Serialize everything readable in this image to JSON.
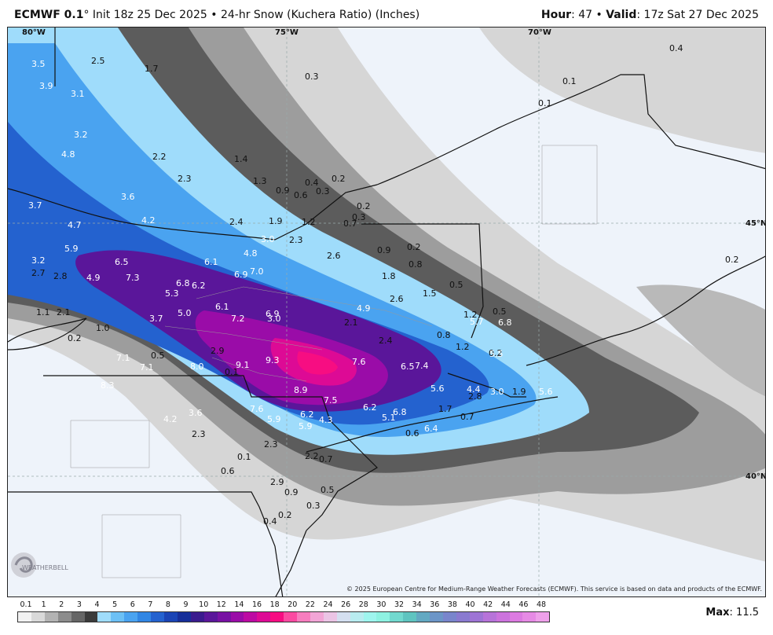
{
  "header": {
    "model": "ECMWF 0.1",
    "degree": "°",
    "init": " Init 18z 25 Dec 2025",
    "sep": " • ",
    "product": "24-hr Snow (Kuchera Ratio) (Inches)",
    "hour_label": "Hour",
    "hour_value": ": 47",
    "valid_label": "Valid",
    "valid_value": ": 17z Sat 27 Dec 2025"
  },
  "map": {
    "lon_labels": [
      "80°W",
      "75°W",
      "70°W"
    ],
    "lat_labels": [
      "45°N",
      "40°N"
    ],
    "value_labels": [
      "3.5",
      "2.5",
      "1.7",
      "0.3",
      "0.4",
      "3.9",
      "3.1",
      "0.1",
      "0.1",
      "3.2",
      "4.8",
      "2.2",
      "1.4",
      "2.3",
      "1.3",
      "0.4",
      "0.2",
      "0.9",
      "0.6",
      "0.3",
      "3.6",
      "0.2",
      "3.7",
      "4.2",
      "0.3",
      "4.7",
      "2.4",
      "1.9",
      "1.2",
      "0.7",
      "3.0",
      "2.3",
      "5.9",
      "4.8",
      "0.9",
      "0.2",
      "3.2",
      "6.5",
      "6.1",
      "2.6",
      "0.8",
      "0.2",
      "2.7",
      "2.8",
      "4.9",
      "7.3",
      "6.8",
      "6.2",
      "6.9",
      "7.0",
      "1.8",
      "0.5",
      "5.3",
      "1.5",
      "1.1",
      "2.1",
      "1.0",
      "3.7",
      "5.0",
      "6.1",
      "6.9",
      "4.9",
      "2.6",
      "1.2",
      "0.5",
      "0.2",
      "7.1",
      "7.1",
      "7.2",
      "3.0",
      "2.1",
      "0.8",
      "5.7",
      "6.8",
      "2.9",
      "2.4",
      "1.2",
      "0.2",
      "0.5",
      "5.5",
      "8.0",
      "9.1",
      "9.3",
      "7.6",
      "6.5",
      "7.4",
      "0.1",
      "8.3",
      "8.9",
      "7.5",
      "5.6",
      "4.4",
      "3.0",
      "1.9",
      "5.6",
      "2.8",
      "7.6",
      "6.2",
      "6.8",
      "5.1",
      "1.7",
      "3.6",
      "5.9",
      "6.2",
      "4.3",
      "0.7",
      "4.2",
      "5.9",
      "6.4",
      "0.6",
      "2.3",
      "2.3",
      "2.2",
      "0.7",
      "0.1",
      "0.6",
      "2.9",
      "0.5",
      "0.9",
      "0.3",
      "0.4",
      "0.2"
    ]
  },
  "colorbar": {
    "labels": [
      "0.1",
      "1",
      "2",
      "3",
      "4",
      "5",
      "6",
      "7",
      "8",
      "9",
      "10",
      "12",
      "14",
      "16",
      "18",
      "20",
      "22",
      "24",
      "26",
      "28",
      "30",
      "32",
      "34",
      "36",
      "38",
      "40",
      "42",
      "44",
      "46",
      "48"
    ],
    "colors": [
      "#f2f2f2",
      "#d9d9d9",
      "#b3b3b3",
      "#8c8c8c",
      "#666666",
      "#3b3b3b",
      "#9fdcfb",
      "#6cc0f5",
      "#4aa3f0",
      "#3186e4",
      "#2462cf",
      "#1a44b5",
      "#162e99",
      "#3a1b8e",
      "#5a169a",
      "#7811a3",
      "#9a0ca8",
      "#bd0aa3",
      "#dd0a95",
      "#f70d82",
      "#fb4aa1",
      "#f77dbe",
      "#f2a5d6",
      "#ebc4e5",
      "#d4dff0",
      "#b8ecf0",
      "#9ef5ee",
      "#8ef2e2",
      "#72d9cf",
      "#5fc4c0",
      "#63a9c2",
      "#6c95c7",
      "#7985cc",
      "#8a7ad0",
      "#9e74d5",
      "#b773d9",
      "#cc73dd",
      "#dc7ae1",
      "#e68ae5",
      "#eea0ea"
    ],
    "max_label": "Max",
    "max_value": ": 11.5"
  },
  "copyright": "© 2025 European Centre for Medium-Range Weather Forecasts (ECMWF). This service is based on data and products of the ECMWF.",
  "logo_text": "WEATHERBELL"
}
